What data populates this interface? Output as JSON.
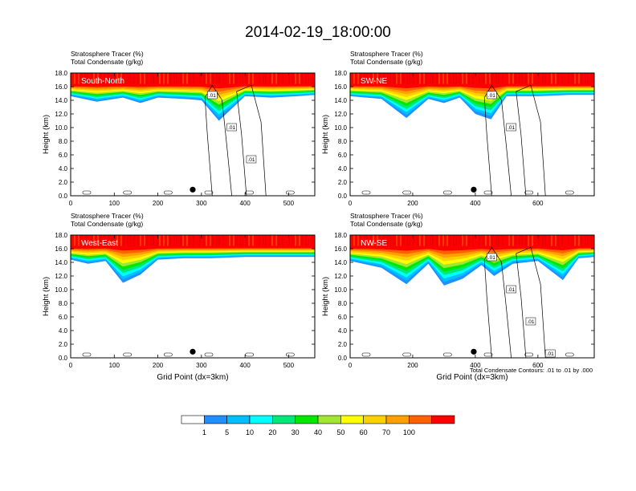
{
  "figure": {
    "title": "2014-02-19_18:00:00",
    "contour_note": "Total Condensate Contours: .01 to .01 by .000"
  },
  "chart_data": [
    {
      "type": "heatmap",
      "panel_label": "South-North",
      "subtitle_line1": "Stratosphere Tracer   (%)",
      "subtitle_line2": "Total Condensate   (g/kg)",
      "ylabel": "Height (km)",
      "xlabel": "",
      "xlim": [
        0,
        560
      ],
      "ylim": [
        0,
        18
      ],
      "xticks": [
        0,
        100,
        200,
        300,
        400,
        500
      ],
      "yticks": [
        0,
        2,
        4,
        6,
        8,
        10,
        12,
        14,
        16,
        18
      ],
      "tracer_profile": {
        "x": [
          0,
          60,
          120,
          160,
          200,
          260,
          300,
          340,
          400,
          460,
          520,
          560
        ],
        "band_bottom_km": [
          14.6,
          13.8,
          14.4,
          13.6,
          14.4,
          14.2,
          14.0,
          11.0,
          14.6,
          14.4,
          14.6,
          14.8
        ]
      },
      "contour_labels": [
        ".01",
        ".01",
        ".01"
      ],
      "marker_x": 280
    },
    {
      "type": "heatmap",
      "panel_label": "SW-NE",
      "subtitle_line1": "Stratosphere Tracer   (%)",
      "subtitle_line2": "Total Condensate   (g/kg)",
      "ylabel": "Height (km)",
      "xlabel": "",
      "xlim": [
        0,
        780
      ],
      "ylim": [
        0,
        18
      ],
      "xticks": [
        0,
        200,
        400,
        600
      ],
      "yticks": [
        0,
        2,
        4,
        6,
        8,
        10,
        12,
        14,
        16,
        18
      ],
      "tracer_profile": {
        "x": [
          0,
          100,
          180,
          250,
          300,
          350,
          400,
          450,
          500,
          600,
          700,
          780
        ],
        "band_bottom_km": [
          14.6,
          14.2,
          11.4,
          14.2,
          13.6,
          14.4,
          12.0,
          11.2,
          14.6,
          14.6,
          14.8,
          14.8
        ]
      },
      "contour_labels": [
        ".01",
        ".01"
      ],
      "marker_x": 395
    },
    {
      "type": "heatmap",
      "panel_label": "West-East",
      "subtitle_line1": "Stratosphere Tracer   (%)",
      "subtitle_line2": "Total Condensate   (g/kg)",
      "ylabel": "Height (km)",
      "xlabel": "Grid Point (dx=3km)",
      "xlim": [
        0,
        560
      ],
      "ylim": [
        0,
        18
      ],
      "xticks": [
        0,
        100,
        200,
        300,
        400,
        500
      ],
      "yticks": [
        0,
        2,
        4,
        6,
        8,
        10,
        12,
        14,
        16,
        18
      ],
      "tracer_profile": {
        "x": [
          0,
          40,
          80,
          120,
          160,
          200,
          260,
          320,
          400,
          480,
          560
        ],
        "band_bottom_km": [
          14.4,
          13.8,
          14.2,
          11.0,
          12.2,
          14.4,
          14.6,
          14.6,
          14.8,
          14.8,
          14.8
        ]
      },
      "contour_labels": [],
      "marker_x": 280
    },
    {
      "type": "heatmap",
      "panel_label": "NW-SE",
      "subtitle_line1": "Stratosphere Tracer   (%)",
      "subtitle_line2": "Total Condensate   (g/kg)",
      "ylabel": "Height (km)",
      "xlabel": "Grid Point (dx=3km)",
      "xlim": [
        0,
        780
      ],
      "ylim": [
        0,
        18
      ],
      "xticks": [
        0,
        200,
        400,
        600
      ],
      "yticks": [
        0,
        2,
        4,
        6,
        8,
        10,
        12,
        14,
        16,
        18
      ],
      "tracer_profile": {
        "x": [
          0,
          100,
          180,
          250,
          300,
          360,
          420,
          460,
          520,
          600,
          680,
          730,
          780
        ],
        "band_bottom_km": [
          14.2,
          13.2,
          10.8,
          13.8,
          10.6,
          11.6,
          13.6,
          12.0,
          13.8,
          14.2,
          11.4,
          14.6,
          14.8
        ]
      },
      "contour_labels": [
        ".01",
        ".01",
        ".01",
        ".01"
      ],
      "marker_x": 395
    }
  ],
  "colorbar": {
    "levels": [
      "1",
      "5",
      "10",
      "20",
      "30",
      "40",
      "50",
      "60",
      "70",
      "100"
    ],
    "colors": [
      "#ffffff",
      "#1e90ff",
      "#00bfff",
      "#00ffff",
      "#00e878",
      "#00e800",
      "#a0e632",
      "#ffff00",
      "#ffd000",
      "#ffa000",
      "#ff6000",
      "#ff0000"
    ]
  }
}
